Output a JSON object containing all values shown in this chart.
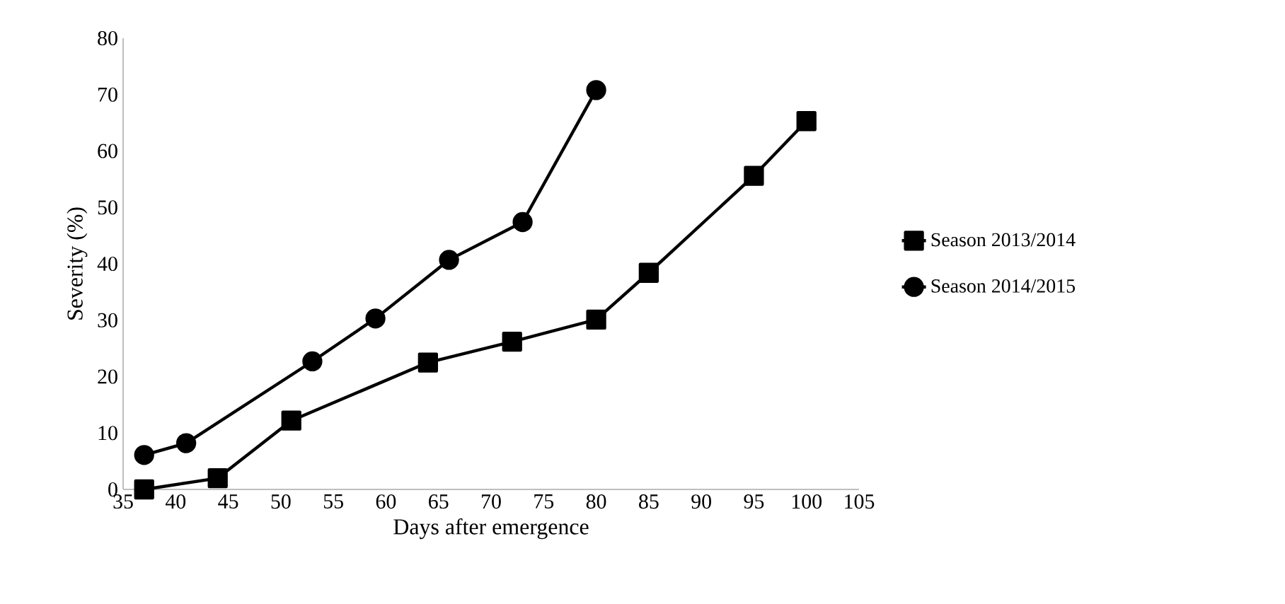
{
  "chart_data": {
    "type": "line",
    "xlabel": "Days after emergence",
    "ylabel": "Severity (%)",
    "xlim": [
      35,
      105
    ],
    "xticks": [
      35,
      40,
      45,
      50,
      55,
      60,
      65,
      70,
      75,
      80,
      85,
      90,
      95,
      100,
      105
    ],
    "ylim": [
      0,
      80
    ],
    "yticks": [
      0,
      10,
      20,
      30,
      40,
      50,
      60,
      70,
      80
    ],
    "grid": false,
    "legend": "right",
    "line_style": "solid",
    "series": [
      {
        "name": "Season 2013/2014",
        "color": "#000000",
        "marker": "square",
        "x": [
          37,
          44,
          51,
          64,
          72,
          80,
          85,
          95,
          100
        ],
        "values": [
          0,
          2,
          12.2,
          22.5,
          26.2,
          30.1,
          38.4,
          55.6,
          65.3
        ]
      },
      {
        "name": "Season 2014/2015",
        "color": "#000000",
        "marker": "circle",
        "x": [
          37,
          41,
          53,
          59,
          66,
          73,
          80
        ],
        "values": [
          6.1,
          8.2,
          22.7,
          30.3,
          40.7,
          47.4,
          70.8
        ]
      }
    ]
  }
}
